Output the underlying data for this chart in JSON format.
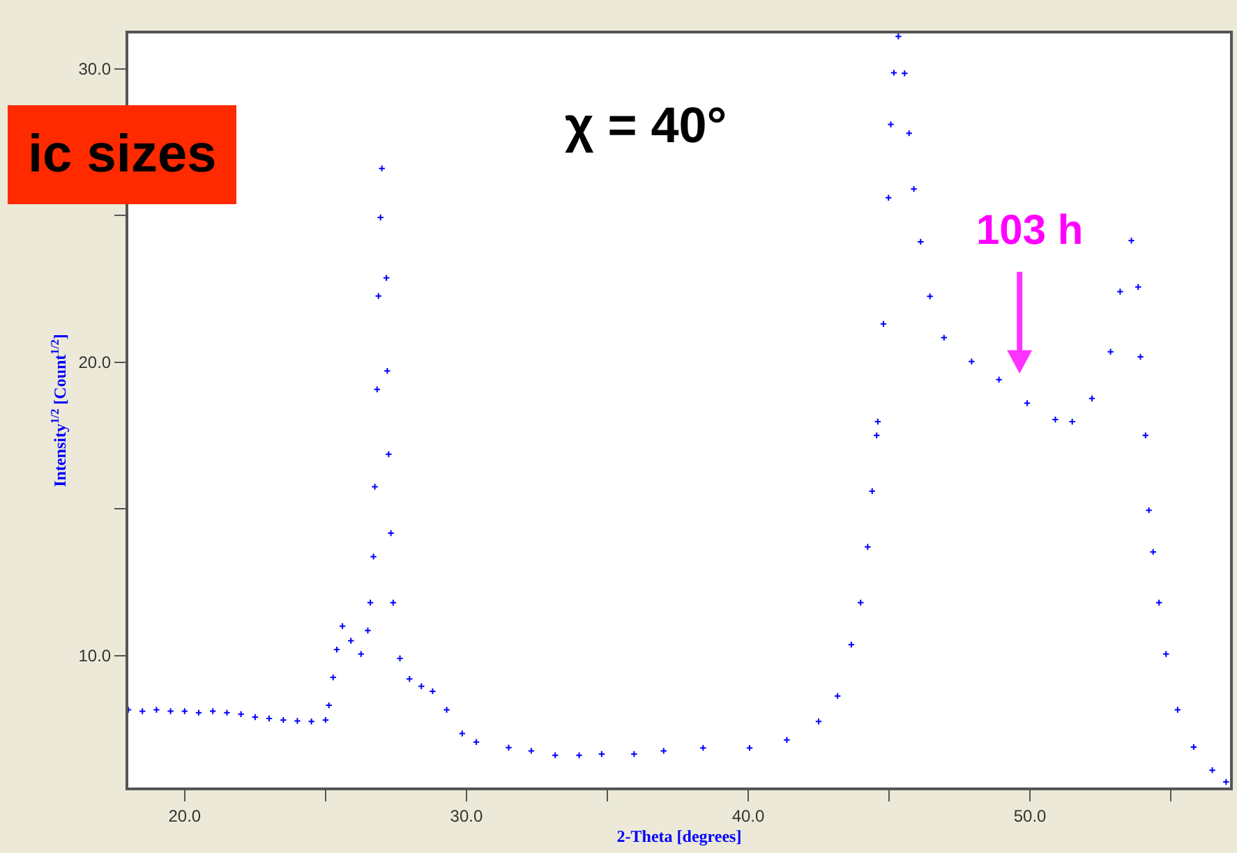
{
  "chart_data": {
    "type": "scatter",
    "title": "χ = 40°",
    "xlabel": "2-Theta [degrees]",
    "ylabel": "Intensity$^{1/2}$ [Count$^{1/2}$]",
    "annotations": [
      "ic sizes",
      "103 h"
    ],
    "x": [
      18.0,
      18.5,
      19.0,
      19.5,
      20.0,
      20.5,
      21.0,
      21.5,
      22.0,
      22.5,
      23.0,
      23.5,
      24.0,
      24.5,
      25.0,
      25.12,
      25.27,
      25.4,
      25.6,
      25.9,
      26.26,
      26.5,
      26.59,
      26.7,
      26.75,
      26.83,
      26.88,
      26.95,
      27.0,
      27.16,
      27.19,
      27.24,
      27.32,
      27.4,
      27.64,
      27.98,
      28.4,
      28.8,
      29.3,
      29.85,
      30.35,
      31.5,
      32.3,
      33.15,
      34.0,
      34.8,
      35.95,
      37.0,
      38.4,
      40.05,
      41.37,
      42.5,
      43.17,
      43.66,
      43.99,
      44.24,
      44.4,
      44.56,
      44.6,
      44.8,
      44.98,
      45.06,
      45.17,
      45.33,
      45.55,
      45.71,
      45.88,
      46.12,
      46.45,
      46.95,
      47.93,
      48.9,
      49.9,
      50.9,
      51.5,
      52.2,
      52.86,
      53.2,
      53.6,
      53.84,
      53.92,
      54.1,
      54.22,
      54.37,
      54.58,
      54.83,
      55.24,
      55.81,
      56.47,
      56.96
    ],
    "series": [
      {
        "color": "#0000ff",
        "values": [
          8.15,
          8.1,
          8.15,
          8.1,
          8.1,
          8.05,
          8.1,
          8.05,
          8.0,
          7.9,
          7.85,
          7.8,
          7.77,
          7.75,
          7.8,
          8.3,
          9.25,
          10.2,
          11.0,
          10.5,
          10.05,
          10.85,
          11.8,
          13.37,
          15.75,
          19.07,
          22.25,
          24.93,
          26.6,
          22.87,
          19.7,
          16.86,
          14.17,
          11.8,
          9.9,
          9.2,
          8.95,
          8.78,
          8.15,
          7.34,
          7.05,
          6.86,
          6.75,
          6.6,
          6.6,
          6.64,
          6.64,
          6.75,
          6.85,
          6.85,
          7.12,
          7.75,
          8.62,
          10.37,
          11.8,
          13.7,
          15.6,
          17.5,
          17.97,
          21.3,
          25.6,
          28.1,
          29.86,
          31.1,
          29.84,
          27.8,
          25.9,
          24.1,
          22.24,
          20.83,
          20.02,
          19.4,
          18.6,
          18.04,
          17.97,
          18.76,
          20.35,
          22.4,
          24.14,
          22.56,
          20.18,
          17.5,
          14.95,
          13.53,
          11.8,
          10.05,
          8.15,
          6.88,
          6.09,
          5.69
        ]
      }
    ],
    "xlim": [
      18.0,
      57.1
    ],
    "ylim": [
      5.5,
      31.2
    ],
    "xticks": [
      {
        "value": 20,
        "label": "20.0"
      },
      {
        "value": 25,
        "label": null
      },
      {
        "value": 30,
        "label": "30.0"
      },
      {
        "value": 35,
        "label": null
      },
      {
        "value": 40,
        "label": "40.0"
      },
      {
        "value": 45,
        "label": null
      },
      {
        "value": 50,
        "label": "50.0"
      },
      {
        "value": 55,
        "label": null
      }
    ],
    "yticks": [
      {
        "value": 10,
        "label": "10.0"
      },
      {
        "value": 15,
        "label": null
      },
      {
        "value": 20,
        "label": "20.0"
      },
      {
        "value": 25,
        "label": null
      },
      {
        "value": 30,
        "label": "30.0"
      }
    ],
    "marker": "cross"
  }
}
